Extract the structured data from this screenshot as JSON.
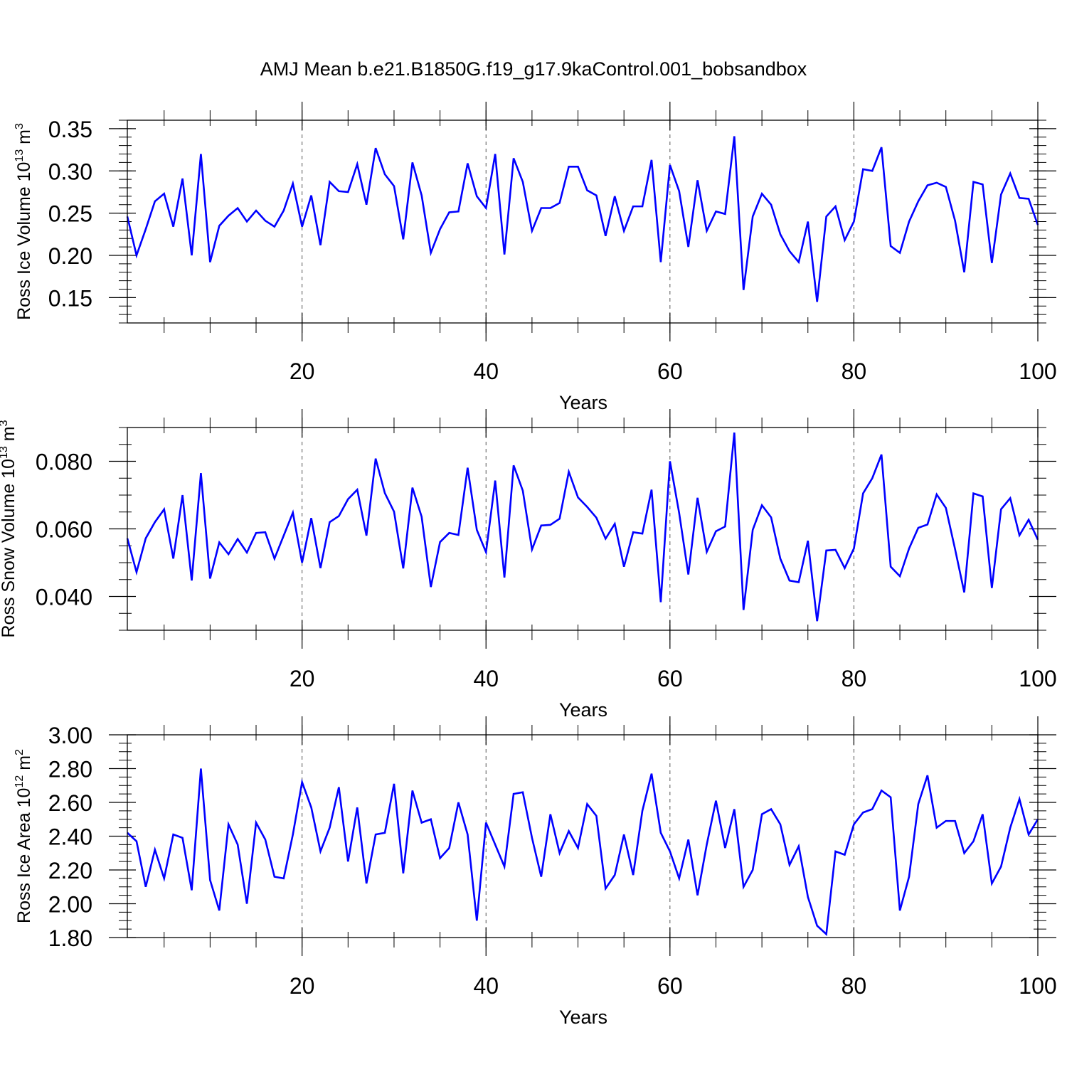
{
  "title": "AMJ Mean b.e21.B1850G.f19_g17.9kaControl.001_bobsandbox",
  "line_color": "#0000ff",
  "chart_data": [
    {
      "type": "line",
      "ylabel": "Ross Ice Volume 10",
      "ylabel_exp": "13",
      "ylabel_unit": " m",
      "ylabel_unit_exp": "3",
      "xlabel": "Years",
      "xlim": [
        1,
        100
      ],
      "ylim": [
        0.12,
        0.36
      ],
      "xticks": [
        {
          "v": 20,
          "label": "20"
        },
        {
          "v": 40,
          "label": "40"
        },
        {
          "v": 60,
          "label": "60"
        },
        {
          "v": 80,
          "label": "80"
        },
        {
          "v": 100,
          "label": "100"
        }
      ],
      "yticks": [
        {
          "v": 0.15,
          "label": "0.15"
        },
        {
          "v": 0.2,
          "label": "0.20"
        },
        {
          "v": 0.25,
          "label": "0.25"
        },
        {
          "v": 0.3,
          "label": "0.30"
        },
        {
          "v": 0.35,
          "label": "0.35"
        }
      ],
      "vgrid": [
        20,
        40,
        60,
        80
      ],
      "x_minor_step": 5,
      "y_minor_step": 0.01,
      "series": [
        {
          "values": [
            0.246,
            0.2,
            0.231,
            0.264,
            0.273,
            0.234,
            0.291,
            0.2,
            0.32,
            0.192,
            0.235,
            0.247,
            0.256,
            0.24,
            0.253,
            0.241,
            0.234,
            0.253,
            0.285,
            0.234,
            0.271,
            0.212,
            0.287,
            0.276,
            0.275,
            0.308,
            0.26,
            0.327,
            0.296,
            0.282,
            0.219,
            0.31,
            0.271,
            0.203,
            0.231,
            0.251,
            0.252,
            0.309,
            0.27,
            0.256,
            0.32,
            0.201,
            0.315,
            0.287,
            0.229,
            0.256,
            0.256,
            0.262,
            0.305,
            0.305,
            0.277,
            0.271,
            0.223,
            0.27,
            0.229,
            0.258,
            0.258,
            0.313,
            0.192,
            0.307,
            0.276,
            0.21,
            0.289,
            0.229,
            0.252,
            0.249,
            0.341,
            0.159,
            0.246,
            0.273,
            0.26,
            0.225,
            0.205,
            0.192,
            0.24,
            0.145,
            0.246,
            0.258,
            0.218,
            0.24,
            0.302,
            0.3,
            0.328,
            0.211,
            0.203,
            0.24,
            0.264,
            0.283,
            0.286,
            0.281,
            0.241,
            0.18,
            0.287,
            0.284,
            0.191,
            0.272,
            0.297,
            0.268,
            0.267,
            0.236
          ]
        }
      ]
    },
    {
      "type": "line",
      "ylabel": "Ross Snow Volume 10",
      "ylabel_exp": "13",
      "ylabel_unit": " m",
      "ylabel_unit_exp": "3",
      "xlabel": "Years",
      "xlim": [
        1,
        100
      ],
      "ylim": [
        0.03,
        0.09
      ],
      "xticks": [
        {
          "v": 20,
          "label": "20"
        },
        {
          "v": 40,
          "label": "40"
        },
        {
          "v": 60,
          "label": "60"
        },
        {
          "v": 80,
          "label": "80"
        },
        {
          "v": 100,
          "label": "100"
        }
      ],
      "yticks": [
        {
          "v": 0.04,
          "label": "0.040"
        },
        {
          "v": 0.06,
          "label": "0.060"
        },
        {
          "v": 0.08,
          "label": "0.080"
        }
      ],
      "vgrid": [
        20,
        40,
        60,
        80
      ],
      "x_minor_step": 5,
      "y_minor_step": 0.005,
      "series": [
        {
          "values": [
            0.0572,
            0.0472,
            0.0572,
            0.062,
            0.0658,
            0.0512,
            0.07,
            0.0447,
            0.0765,
            0.0453,
            0.056,
            0.0525,
            0.057,
            0.053,
            0.0588,
            0.059,
            0.0512,
            0.058,
            0.0648,
            0.05,
            0.0632,
            0.0484,
            0.062,
            0.0638,
            0.0688,
            0.0716,
            0.058,
            0.0808,
            0.0706,
            0.0651,
            0.0483,
            0.0722,
            0.0636,
            0.0428,
            0.0561,
            0.0588,
            0.0582,
            0.0781,
            0.0597,
            0.0531,
            0.0743,
            0.0456,
            0.0788,
            0.0713,
            0.0539,
            0.061,
            0.0612,
            0.063,
            0.0769,
            0.0693,
            0.0665,
            0.0633,
            0.0571,
            0.0615,
            0.0488,
            0.059,
            0.0586,
            0.0716,
            0.0383,
            0.08,
            0.0647,
            0.0465,
            0.0692,
            0.0532,
            0.0593,
            0.0607,
            0.0885,
            0.036,
            0.0597,
            0.067,
            0.0634,
            0.0512,
            0.0447,
            0.0442,
            0.0565,
            0.0327,
            0.0536,
            0.0538,
            0.0484,
            0.0542,
            0.0705,
            0.075,
            0.082,
            0.0488,
            0.046,
            0.0542,
            0.0603,
            0.0613,
            0.0702,
            0.0662,
            0.054,
            0.0412,
            0.0705,
            0.0696,
            0.0425,
            0.0658,
            0.0691,
            0.0581,
            0.0627,
            0.0568
          ]
        }
      ]
    },
    {
      "type": "line",
      "ylabel": "Ross Ice Area 10",
      "ylabel_exp": "12",
      "ylabel_unit": " m",
      "ylabel_unit_exp": "2",
      "xlabel": "Years",
      "xlim": [
        1,
        100
      ],
      "ylim": [
        1.8,
        3.0
      ],
      "xticks": [
        {
          "v": 20,
          "label": "20"
        },
        {
          "v": 40,
          "label": "40"
        },
        {
          "v": 60,
          "label": "60"
        },
        {
          "v": 80,
          "label": "80"
        },
        {
          "v": 100,
          "label": "100"
        }
      ],
      "yticks": [
        {
          "v": 1.8,
          "label": "1.80"
        },
        {
          "v": 2.0,
          "label": "2.00"
        },
        {
          "v": 2.2,
          "label": "2.20"
        },
        {
          "v": 2.4,
          "label": "2.40"
        },
        {
          "v": 2.6,
          "label": "2.60"
        },
        {
          "v": 2.8,
          "label": "2.80"
        },
        {
          "v": 3.0,
          "label": "3.00"
        }
      ],
      "vgrid": [
        20,
        40,
        60,
        80
      ],
      "x_minor_step": 5,
      "y_minor_step": 0.05,
      "series": [
        {
          "values": [
            2.42,
            2.37,
            2.1,
            2.32,
            2.15,
            2.41,
            2.39,
            2.08,
            2.8,
            2.14,
            1.96,
            2.47,
            2.35,
            2.0,
            2.48,
            2.38,
            2.16,
            2.15,
            2.41,
            2.72,
            2.57,
            2.31,
            2.45,
            2.69,
            2.25,
            2.57,
            2.12,
            2.41,
            2.42,
            2.71,
            2.18,
            2.67,
            2.48,
            2.5,
            2.27,
            2.33,
            2.6,
            2.41,
            1.9,
            2.48,
            2.35,
            2.22,
            2.65,
            2.66,
            2.39,
            2.16,
            2.53,
            2.3,
            2.43,
            2.33,
            2.59,
            2.52,
            2.09,
            2.17,
            2.41,
            2.17,
            2.55,
            2.77,
            2.42,
            2.31,
            2.15,
            2.38,
            2.05,
            2.35,
            2.61,
            2.33,
            2.56,
            2.1,
            2.2,
            2.53,
            2.56,
            2.47,
            2.23,
            2.34,
            2.04,
            1.87,
            1.82,
            2.31,
            2.29,
            2.47,
            2.54,
            2.56,
            2.67,
            2.63,
            1.96,
            2.16,
            2.59,
            2.76,
            2.45,
            2.49,
            2.49,
            2.3,
            2.37,
            2.53,
            2.12,
            2.22,
            2.45,
            2.62,
            2.41,
            2.5
          ]
        }
      ]
    }
  ]
}
